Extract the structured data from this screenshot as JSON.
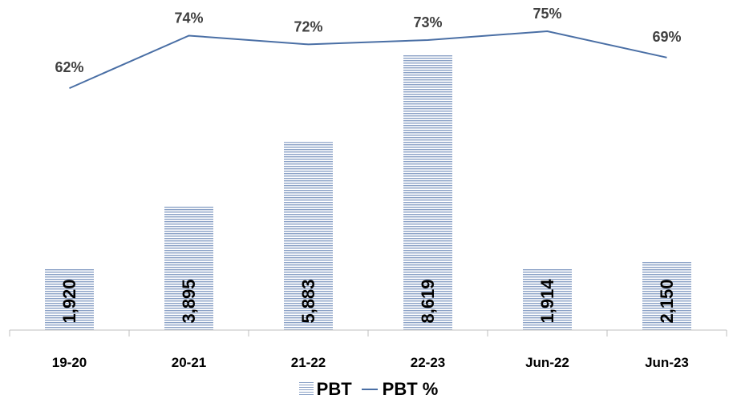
{
  "chart_data": {
    "type": "bar+line",
    "categories": [
      "19-20",
      "20-21",
      "21-22",
      "22-23",
      "Jun-22",
      "Jun-23"
    ],
    "series": [
      {
        "name": "PBT",
        "type": "bar",
        "values": [
          1920,
          3895,
          5883,
          8619,
          1914,
          2150
        ],
        "labels": [
          "1,920",
          "3,895",
          "5,883",
          "8,619",
          "1,914",
          "2,150"
        ],
        "color": "#8aa1c6"
      },
      {
        "name": "PBT %",
        "type": "line",
        "values": [
          62,
          74,
          72,
          73,
          75,
          69
        ],
        "labels": [
          "62%",
          "74%",
          "72%",
          "73%",
          "75%",
          "69%"
        ],
        "color": "#4a6fa5"
      }
    ],
    "legend_position": "bottom-center",
    "grid": false
  }
}
